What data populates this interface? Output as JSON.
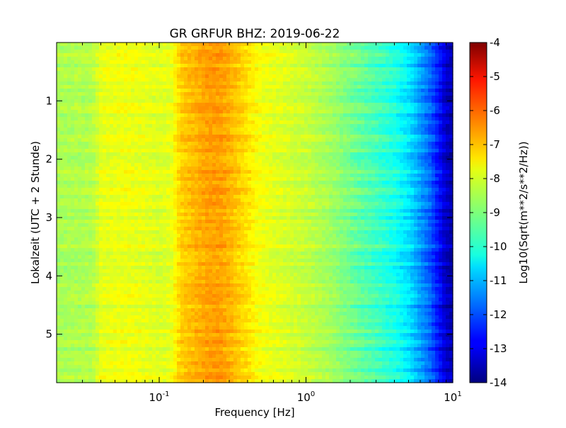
{
  "chart_data": {
    "type": "heatmap",
    "title": "GR GRFUR BHZ: 2019-06-22",
    "xlabel": "Frequency [Hz]",
    "ylabel": "Lokalzeit (UTC + 2 Stunde)",
    "colorbar_label": "Log10(Sqrt(m**2/s**2/Hz))",
    "x_scale": "log",
    "xlim": [
      0.02,
      10
    ],
    "x_ticks": [
      {
        "value": 0.1,
        "base": "10",
        "exp": "-1"
      },
      {
        "value": 1,
        "base": "10",
        "exp": "0"
      },
      {
        "value": 10,
        "base": "10",
        "exp": "1"
      }
    ],
    "ylim": [
      0,
      5.83
    ],
    "y_inverted": true,
    "y_ticks": [
      {
        "value": 1,
        "label": "1"
      },
      {
        "value": 2,
        "label": "2"
      },
      {
        "value": 3,
        "label": "3"
      },
      {
        "value": 4,
        "label": "4"
      },
      {
        "value": 5,
        "label": "5"
      }
    ],
    "colormap": "jet",
    "clim": [
      -14,
      -4
    ],
    "colorbar_ticks": [
      "-4",
      "-5",
      "-6",
      "-7",
      "-8",
      "-9",
      "-10",
      "-11",
      "-12",
      "-13",
      "-14"
    ],
    "spectrum_profile": {
      "frequency_hz": [
        0.02,
        0.035,
        0.04,
        0.06,
        0.08,
        0.1,
        0.12,
        0.14,
        0.18,
        0.22,
        0.26,
        0.3,
        0.4,
        0.5,
        0.7,
        1.0,
        1.5,
        2.0,
        3.0,
        4.0,
        5.0,
        6.0,
        7.0,
        8.0,
        9.0,
        10.0
      ],
      "log10_amplitude": [
        -8.6,
        -8.5,
        -8.0,
        -7.9,
        -8.0,
        -8.1,
        -8.0,
        -7.3,
        -7.0,
        -6.8,
        -6.8,
        -7.0,
        -7.5,
        -7.9,
        -8.1,
        -8.3,
        -8.7,
        -9.1,
        -9.6,
        -10.0,
        -10.5,
        -11.2,
        -11.8,
        -12.6,
        -13.3,
        -13.6
      ]
    }
  }
}
